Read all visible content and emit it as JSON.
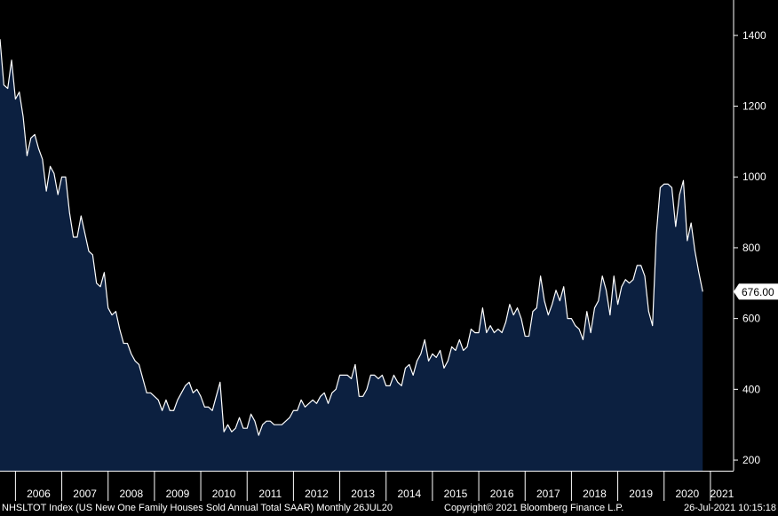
{
  "chart_data": {
    "type": "area",
    "title": "",
    "xlabel": "",
    "ylabel": "",
    "ylim": [
      170,
      1500
    ],
    "xlim": [
      "2005-09",
      "2021-07"
    ],
    "y_ticks": [
      200,
      400,
      600,
      800,
      1000,
      1200,
      1400
    ],
    "x_tick_labels": [
      "2006",
      "2007",
      "2008",
      "2009",
      "2010",
      "2011",
      "2012",
      "2013",
      "2014",
      "2015",
      "2016",
      "2017",
      "2018",
      "2019",
      "2020",
      "2021"
    ],
    "last_value_label": "676.00",
    "grid": false,
    "legend": "none",
    "colors": {
      "line": "#ffffff",
      "fill": "#0c2040",
      "background": "#000000"
    },
    "series": [
      {
        "x_start": "2005-09",
        "frequency": "monthly",
        "values": [
          1389,
          1260,
          1250,
          1330,
          1220,
          1240,
          1170,
          1060,
          1110,
          1120,
          1080,
          1050,
          960,
          1030,
          1010,
          950,
          1000,
          1000,
          900,
          830,
          830,
          890,
          840,
          790,
          780,
          700,
          690,
          730,
          630,
          610,
          620,
          570,
          530,
          530,
          500,
          480,
          470,
          430,
          390,
          390,
          380,
          370,
          340,
          370,
          340,
          340,
          370,
          390,
          410,
          420,
          390,
          400,
          380,
          350,
          350,
          340,
          380,
          420,
          280,
          300,
          280,
          290,
          320,
          290,
          290,
          330,
          310,
          270,
          300,
          310,
          310,
          300,
          300,
          300,
          310,
          320,
          340,
          340,
          370,
          350,
          360,
          370,
          360,
          380,
          390,
          360,
          390,
          400,
          440,
          440,
          440,
          430,
          470,
          380,
          380,
          400,
          440,
          440,
          430,
          440,
          410,
          410,
          440,
          420,
          410,
          460,
          470,
          440,
          480,
          500,
          540,
          480,
          500,
          490,
          510,
          460,
          480,
          520,
          510,
          540,
          510,
          520,
          570,
          560,
          560,
          630,
          560,
          580,
          560,
          570,
          560,
          590,
          640,
          610,
          630,
          600,
          550,
          550,
          620,
          630,
          720,
          650,
          610,
          640,
          680,
          650,
          690,
          600,
          600,
          580,
          570,
          540,
          620,
          560,
          630,
          650,
          720,
          680,
          610,
          720,
          640,
          690,
          710,
          700,
          710,
          750,
          750,
          720,
          620,
          580,
          840,
          970,
          980,
          980,
          970,
          860,
          950,
          990,
          820,
          870,
          790,
          730,
          676
        ]
      }
    ]
  },
  "footer": {
    "left": "NHSLTOT Index (US New One Family Houses Sold Annual Total SAAR)  Monthly 26JUL20",
    "center": "Copyright© 2021 Bloomberg Finance L.P.",
    "right": "26-Jul-2021 10:15:18"
  }
}
